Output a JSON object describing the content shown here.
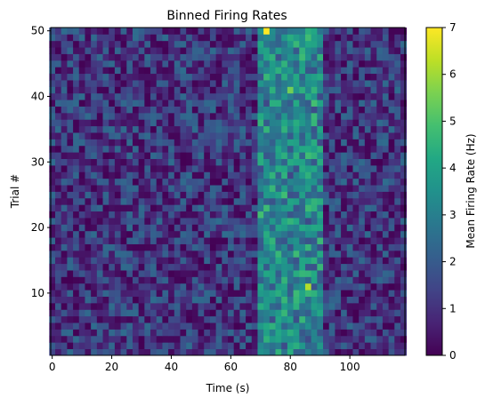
{
  "chart_data": {
    "type": "heatmap",
    "title": "Binned Firing Rates",
    "xlabel": "Time (s)",
    "ylabel": "Trial #",
    "xlim": [
      -0.5,
      118.5
    ],
    "ylim": [
      0.5,
      50.5
    ],
    "x_bins": {
      "count": 60,
      "start": 0,
      "step": 2
    },
    "y_bins": {
      "count": 50,
      "start": 1,
      "step": 1
    },
    "xticks": [
      0,
      20,
      40,
      60,
      80,
      100
    ],
    "yticks": [
      10,
      20,
      30,
      40,
      50
    ],
    "colormap": "viridis",
    "colorbar": {
      "label": "Mean Firing Rate (Hz)",
      "min": 0,
      "max": 7,
      "ticks": [
        0,
        1,
        2,
        3,
        4,
        5,
        6,
        7
      ]
    },
    "background_rate_hz": [
      0,
      2.5
    ],
    "response_window": {
      "x": [
        70,
        90
      ],
      "rate_hz": [
        2,
        5
      ]
    },
    "peaks": [
      {
        "x": 72,
        "trial": 50,
        "rate_hz": 7
      },
      {
        "x": 86,
        "trial": 11,
        "rate_hz": 6.2
      },
      {
        "x": 80,
        "trial": 41,
        "rate_hz": 5.5
      }
    ]
  }
}
